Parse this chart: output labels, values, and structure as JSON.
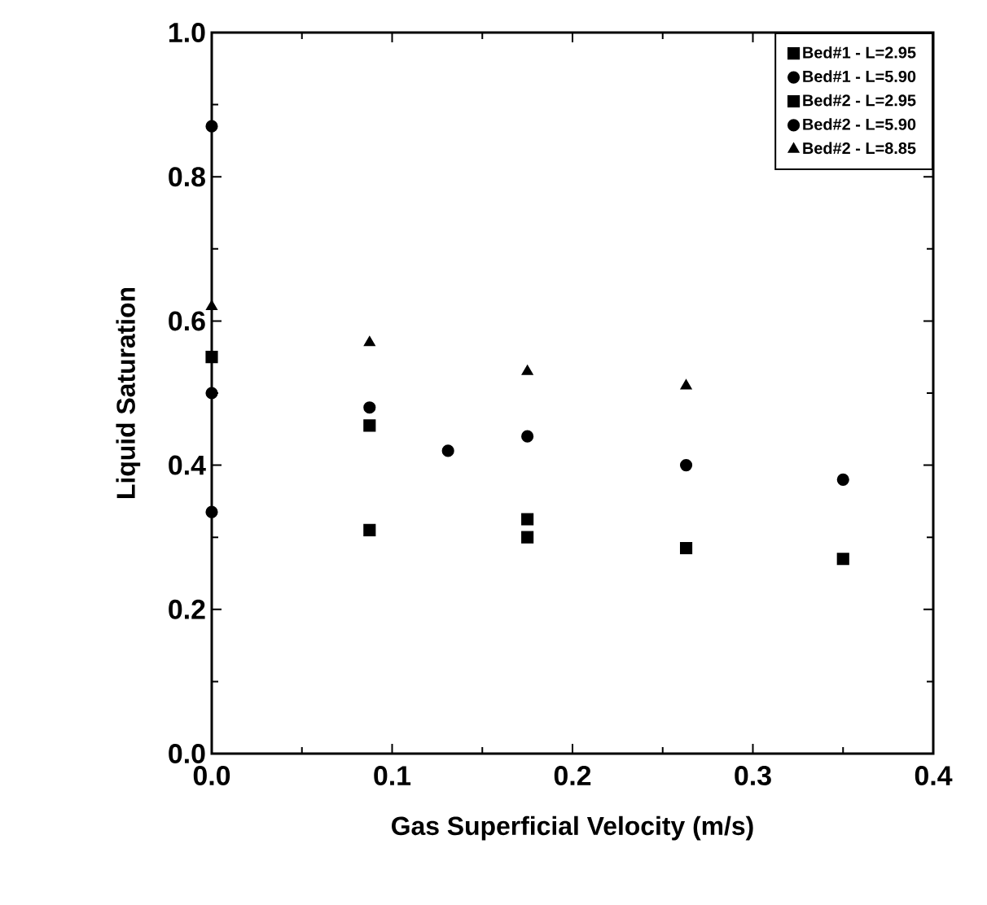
{
  "chart_data": {
    "type": "scatter",
    "xlabel": "Gas  Superficial  Velocity  (m/s)",
    "ylabel": "Liquid  Saturation",
    "xlim": [
      0,
      0.4
    ],
    "ylim": [
      0,
      1
    ],
    "xticks": [
      {
        "value": 0,
        "label": "0.0"
      },
      0.1,
      0.2,
      0.3,
      0.4
    ],
    "yticks": [
      {
        "value": 0,
        "label": "0.0"
      },
      0.2,
      0.4,
      0.6,
      0.8,
      {
        "value": 1,
        "label": "1.0"
      }
    ],
    "legend": "top right",
    "grid": false,
    "series": [
      {
        "name": "Bed#1 - L=2.95",
        "color": "#000000",
        "marker": "square",
        "x": [
          0,
          0.175
        ],
        "values": [
          0.55,
          0.325
        ]
      },
      {
        "name": "Bed#1 - L=5.90",
        "color": "#000000",
        "marker": "circle",
        "x": [
          0,
          0.0875,
          0.131
        ],
        "values": [
          0.87,
          0.48,
          0.42
        ]
      },
      {
        "name": "Bed#2 - L=2.95",
        "color": "#000000",
        "marker": "square",
        "x": [
          0.0875,
          0.0875,
          0.175,
          0.263,
          0.35
        ],
        "values": [
          0.455,
          0.31,
          0.3,
          0.285,
          0.27
        ]
      },
      {
        "name": "Bed#2 - L=5.90",
        "color": "#000000",
        "marker": "circle",
        "x": [
          0,
          0,
          0.175,
          0.263,
          0.35
        ],
        "values": [
          0.5,
          0.335,
          0.44,
          0.4,
          0.38
        ]
      },
      {
        "name": "Bed#2 - L=8.85",
        "color": "#000000",
        "marker": "triangle",
        "x": [
          0,
          0.0875,
          0.175,
          0.263
        ],
        "values": [
          0.62,
          0.57,
          0.53,
          0.51
        ]
      }
    ]
  }
}
